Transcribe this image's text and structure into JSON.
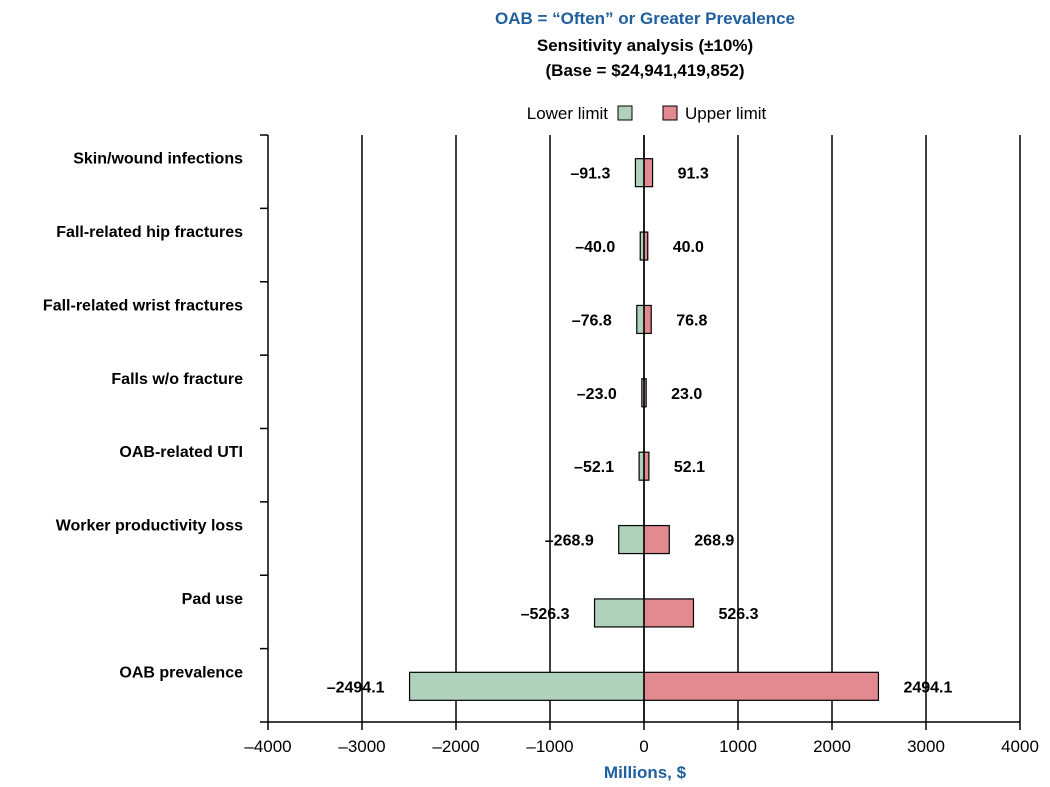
{
  "chart_data": {
    "type": "bar",
    "orientation": "horizontal-tornado",
    "title": "OAB = “Often” or Greater Prevalence",
    "subtitle_lines": [
      "Sensitivity analysis (±10%)",
      "(Base = $24,941,419,852)"
    ],
    "xlabel": "Millions, $",
    "xlim": [
      -4000,
      4000
    ],
    "xticks": [
      -4000,
      -3000,
      -2000,
      -1000,
      0,
      1000,
      2000,
      3000,
      4000
    ],
    "xtick_labels": [
      "–4000",
      "–3000",
      "–2000",
      "–1000",
      "0",
      "1000",
      "2000",
      "3000",
      "4000"
    ],
    "grid": "vertical",
    "legend_position": "top-center",
    "categories": [
      "Skin/wound infections",
      "Fall-related hip fractures",
      "Fall-related wrist fractures",
      "Falls w/o fracture",
      "OAB-related UTI",
      "Worker productivity loss",
      "Pad use",
      "OAB prevalence"
    ],
    "series": [
      {
        "name": "Lower limit",
        "values": [
          -91.3,
          -40.0,
          -76.8,
          -23.0,
          -52.1,
          -268.9,
          -526.3,
          -2494.1
        ],
        "labels": [
          "–91.3",
          "–40.0",
          "–76.8",
          "–23.0",
          "–52.1",
          "–268.9",
          "–526.3",
          "–2494.1"
        ]
      },
      {
        "name": "Upper limit",
        "values": [
          91.3,
          40.0,
          76.8,
          23.0,
          52.1,
          268.9,
          526.3,
          2494.1
        ],
        "labels": [
          "91.3",
          "40.0",
          "76.8",
          "23.0",
          "52.1",
          "268.9",
          "526.3",
          "2494.1"
        ]
      }
    ]
  },
  "colors": {
    "title": "#1f5f9e",
    "lower": "#b0d2bd",
    "upper": "#e38990",
    "axis": "#000000"
  }
}
